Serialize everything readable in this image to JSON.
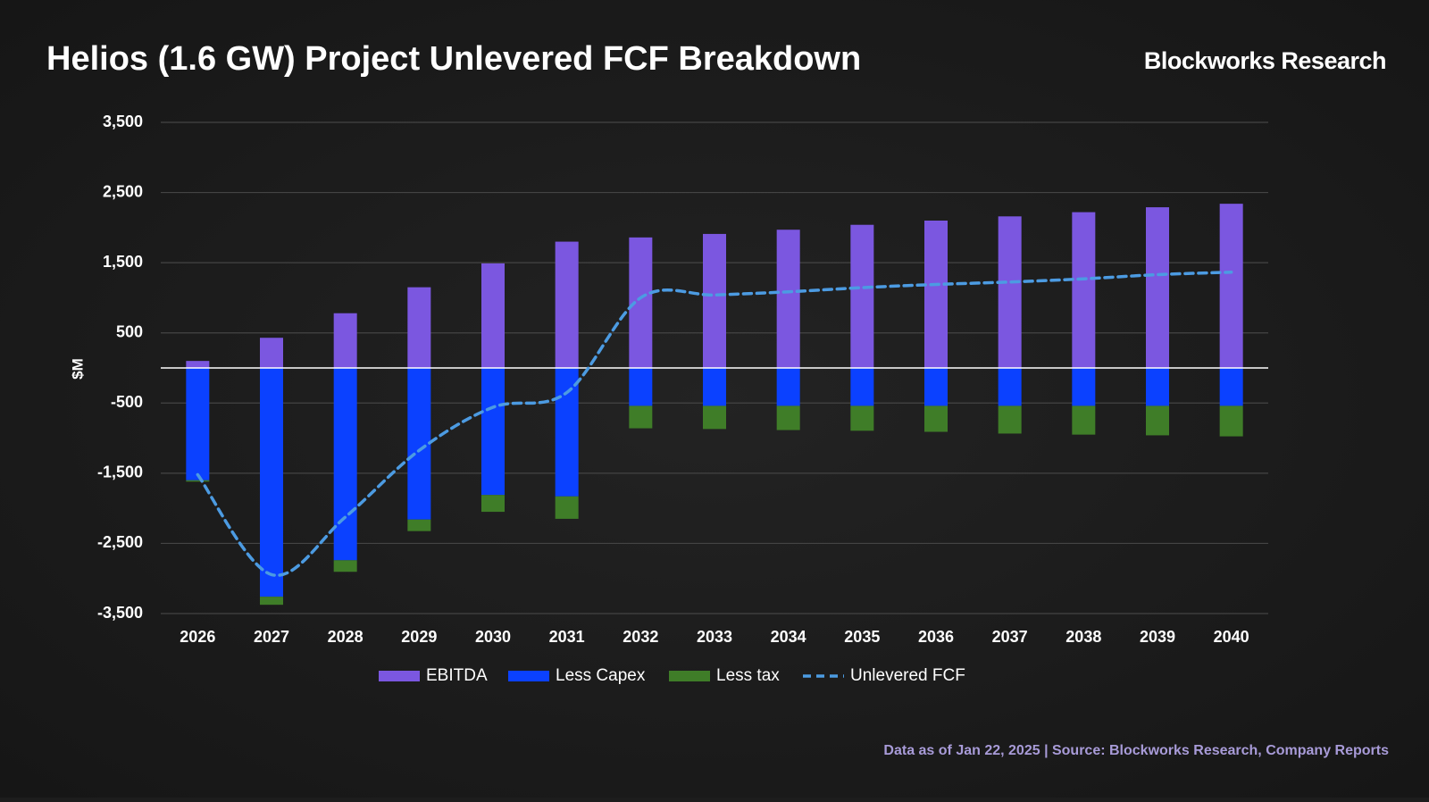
{
  "brand": "Blockworks Research",
  "footer": "Data as of Jan 22, 2025 | Source: Blockworks Research, Company Reports",
  "chart_data": {
    "type": "bar",
    "stacked": true,
    "title": "Helios (1.6 GW) Project Unlevered FCF Breakdown",
    "y_label": "$M",
    "categories": [
      "2026",
      "2027",
      "2028",
      "2029",
      "2030",
      "2031",
      "2032",
      "2033",
      "2034",
      "2035",
      "2036",
      "2037",
      "2038",
      "2039",
      "2040"
    ],
    "series": [
      {
        "name": "EBITDA",
        "color": "#7b57e0",
        "values": [
          100,
          430,
          780,
          1150,
          1490,
          1800,
          1860,
          1910,
          1970,
          2040,
          2100,
          2160,
          2220,
          2290,
          2340
        ]
      },
      {
        "name": "Less Capex",
        "color": "#0b41ff",
        "values": [
          -1600,
          -3260,
          -2740,
          -2160,
          -1810,
          -1830,
          -540,
          -540,
          -540,
          -540,
          -540,
          -540,
          -540,
          -540,
          -540
        ]
      },
      {
        "name": "Less tax",
        "color": "#3f7d28",
        "values": [
          -20,
          -115,
          -165,
          -165,
          -240,
          -320,
          -320,
          -330,
          -345,
          -355,
          -370,
          -395,
          -410,
          -420,
          -435
        ]
      },
      {
        "name": "Unlevered FCF",
        "color": "#4c9be2",
        "type": "line",
        "dashed": true,
        "values": [
          -1520,
          -2945,
          -2125,
          -1175,
          -560,
          -350,
          1000,
          1040,
          1085,
          1145,
          1190,
          1225,
          1270,
          1330,
          1365
        ]
      }
    ],
    "ylim": [
      -3500,
      3500
    ],
    "yticks": [
      {
        "value": 3500,
        "label": "3,500"
      },
      {
        "value": 2500,
        "label": "2,500"
      },
      {
        "value": 1500,
        "label": "1,500"
      },
      500,
      -500,
      {
        "value": -1500,
        "label": "-1,500"
      },
      {
        "value": -2500,
        "label": "-2,500"
      },
      {
        "value": -3500,
        "label": "-3,500"
      }
    ],
    "grid": true,
    "legend": "bottom"
  }
}
